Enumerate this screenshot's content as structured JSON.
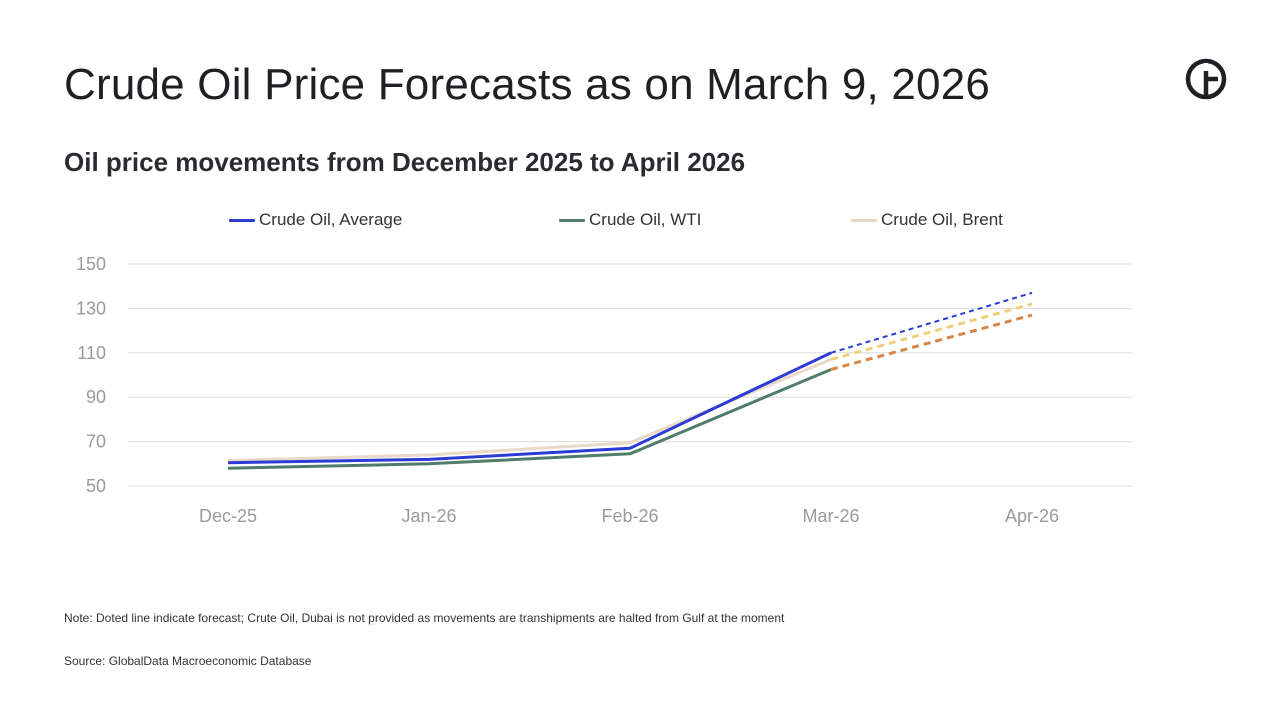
{
  "header": {
    "title": "Crude Oil Price Forecasts as on March 9, 2026",
    "subtitle": "Oil price movements from December 2025 to April 2026",
    "logo_icon": "globaldata-logo-icon"
  },
  "footer": {
    "note": "Note: Doted line indicate forecast; Crute Oil, Dubai is not provided as movements are transhipments are halted from Gulf at the moment",
    "source": "Source: GlobalData Macroeconomic Database"
  },
  "chart_data": {
    "type": "line",
    "title": "Oil price movements from December 2025 to April 2026",
    "xlabel": "",
    "ylabel": "",
    "categories": [
      "Dec-25",
      "Jan-26",
      "Feb-26",
      "Mar-26",
      "Apr-26"
    ],
    "ylim": [
      50,
      150
    ],
    "yticks": [
      50,
      70,
      90,
      110,
      130,
      150
    ],
    "grid": true,
    "legend_position": "top",
    "forecast_start_index": 3,
    "series": [
      {
        "name": "Crude Oil, Average",
        "values": [
          60.5,
          62,
          67,
          110,
          137
        ],
        "color": "#2b3bd6",
        "forecast_color": "#2b3bd6"
      },
      {
        "name": "Crude Oil, WTI",
        "values": [
          58,
          60,
          64.5,
          102.5,
          127
        ],
        "color": "#4f7d6a",
        "forecast_color": "#d4874a"
      },
      {
        "name": "Crude Oil, Brent",
        "values": [
          61.5,
          64,
          69.5,
          107,
          132
        ],
        "color": "#e8d9c8",
        "forecast_color": "#f0cf7a"
      }
    ]
  }
}
